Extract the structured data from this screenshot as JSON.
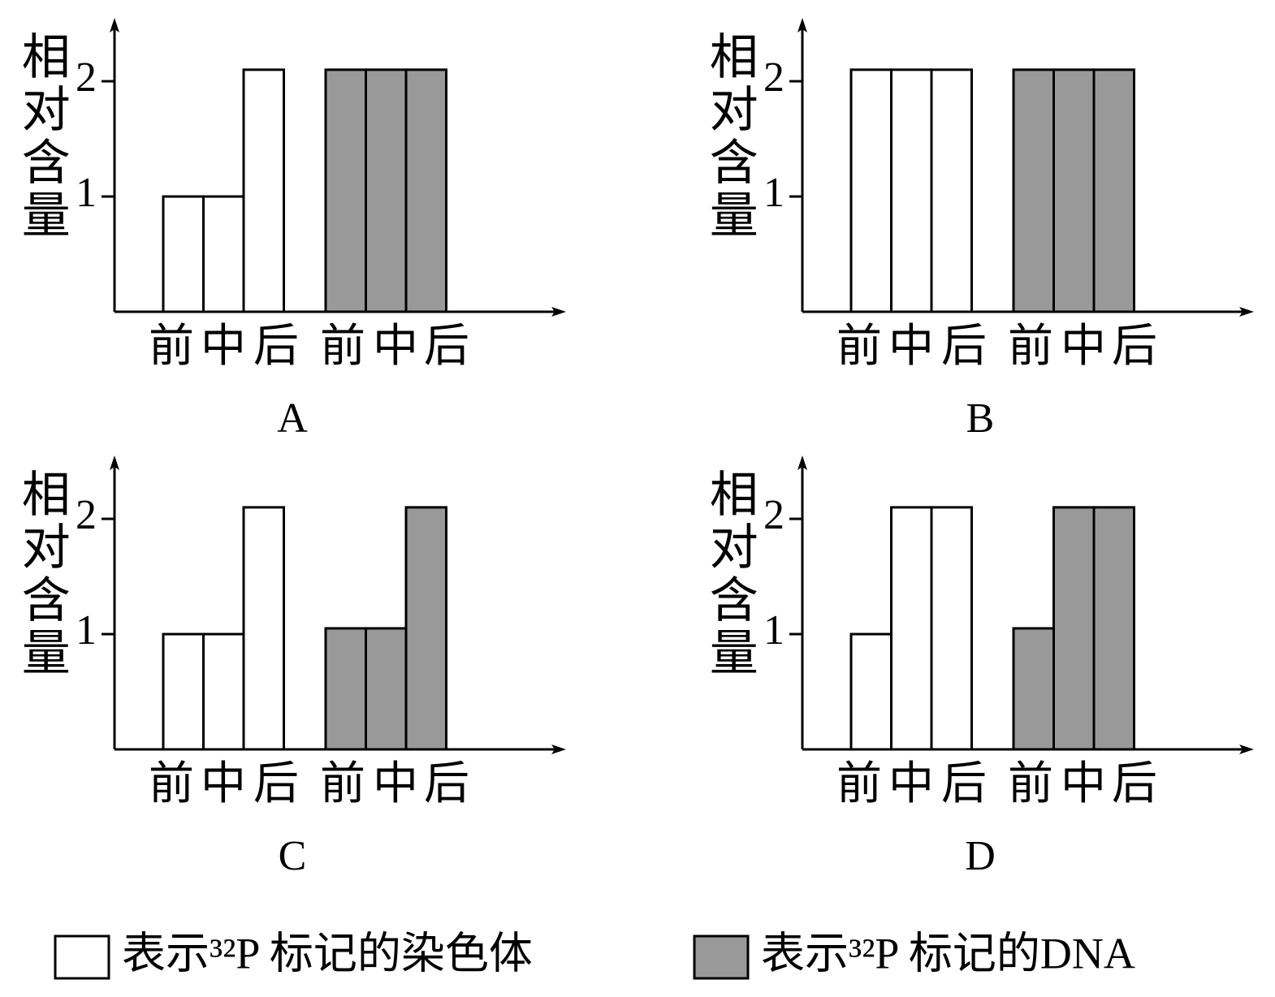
{
  "chart_data": [
    {
      "type": "bar",
      "title": "A",
      "ylabel": "相对含量",
      "categories": [
        "前",
        "中",
        "后"
      ],
      "series": [
        {
          "values": [
            1,
            1,
            2.1
          ]
        },
        {
          "values": [
            2.1,
            2.1,
            2.1
          ]
        }
      ],
      "ylim": [
        0,
        2.55
      ],
      "yticks": [
        1,
        2
      ]
    },
    {
      "type": "bar",
      "title": "B",
      "ylabel": "相对含量",
      "categories": [
        "前",
        "中",
        "后"
      ],
      "series": [
        {
          "values": [
            2.1,
            2.1,
            2.1
          ]
        },
        {
          "values": [
            2.1,
            2.1,
            2.1
          ]
        }
      ],
      "ylim": [
        0,
        2.55
      ],
      "yticks": [
        1,
        2
      ]
    },
    {
      "type": "bar",
      "title": "C",
      "ylabel": "相对含量",
      "categories": [
        "前",
        "中",
        "后"
      ],
      "series": [
        {
          "values": [
            1,
            1,
            2.1
          ]
        },
        {
          "values": [
            1.05,
            1.05,
            2.1
          ]
        }
      ],
      "ylim": [
        0,
        2.55
      ],
      "yticks": [
        1,
        2
      ]
    },
    {
      "type": "bar",
      "title": "D",
      "ylabel": "相对含量",
      "categories": [
        "前",
        "中",
        "后"
      ],
      "series": [
        {
          "values": [
            1,
            2.1,
            2.1
          ]
        },
        {
          "values": [
            1.05,
            2.1,
            2.1
          ]
        }
      ],
      "ylim": [
        0,
        2.55
      ],
      "yticks": [
        1,
        2
      ]
    }
  ],
  "legend": [
    {
      "name": "表示³²P 标记的染色体",
      "color": "#ffffff"
    },
    {
      "name": "表示³²P 标记的DNA",
      "color": "#999999"
    }
  ]
}
